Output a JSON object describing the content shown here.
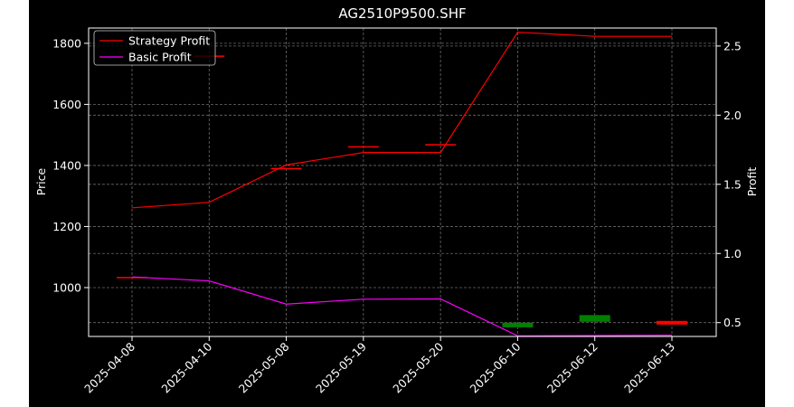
{
  "chart_data": {
    "type": "line",
    "title": "AG2510P9500.SHF",
    "ylabel_left": "Price",
    "ylabel_right": "Profit",
    "categories": [
      "2025-04-08",
      "2025-04-10",
      "2025-05-08",
      "2025-05-19",
      "2025-05-20",
      "2025-06-10",
      "2025-06-12",
      "2025-06-13"
    ],
    "y_left_range": [
      840,
      1850
    ],
    "y_left_ticks": [
      "1000",
      "1200",
      "1400",
      "1600",
      "1800"
    ],
    "y_right_range": [
      0.4,
      2.63
    ],
    "y_right_ticks": [
      "0.5",
      "1.0",
      "1.5",
      "2.0",
      "2.5"
    ],
    "grid": true,
    "legend_position": "top-left",
    "background": "#000000",
    "series": [
      {
        "name": "Strategy Profit",
        "axis": "right",
        "color": "#ff0000",
        "values": [
          1.33,
          1.37,
          1.64,
          1.73,
          1.73,
          2.6,
          2.57,
          2.57
        ]
      },
      {
        "name": "Basic Profit",
        "axis": "left",
        "color": "#ff00ff",
        "values": [
          1035,
          1022,
          946,
          962,
          963,
          842,
          843,
          844
        ]
      }
    ],
    "candles": [
      {
        "category": "2025-04-08",
        "open": 1035,
        "close": 1035,
        "color": "#ff0000"
      },
      {
        "category": "2025-04-10",
        "open": 1760,
        "close": 1760,
        "color": "#ff0000"
      },
      {
        "category": "2025-05-08",
        "open": 1392,
        "close": 1392,
        "color": "#ff0000"
      },
      {
        "category": "2025-05-19",
        "open": 1463,
        "close": 1463,
        "color": "#ff0000"
      },
      {
        "category": "2025-05-20",
        "open": 1470,
        "close": 1470,
        "color": "#ff0000"
      },
      {
        "category": "2025-06-10",
        "open": 885,
        "close": 870,
        "color": "#008000"
      },
      {
        "category": "2025-06-12",
        "open": 910,
        "close": 888,
        "color": "#008000"
      },
      {
        "category": "2025-06-13",
        "open": 891,
        "close": 879,
        "color": "#ff0000"
      }
    ]
  }
}
